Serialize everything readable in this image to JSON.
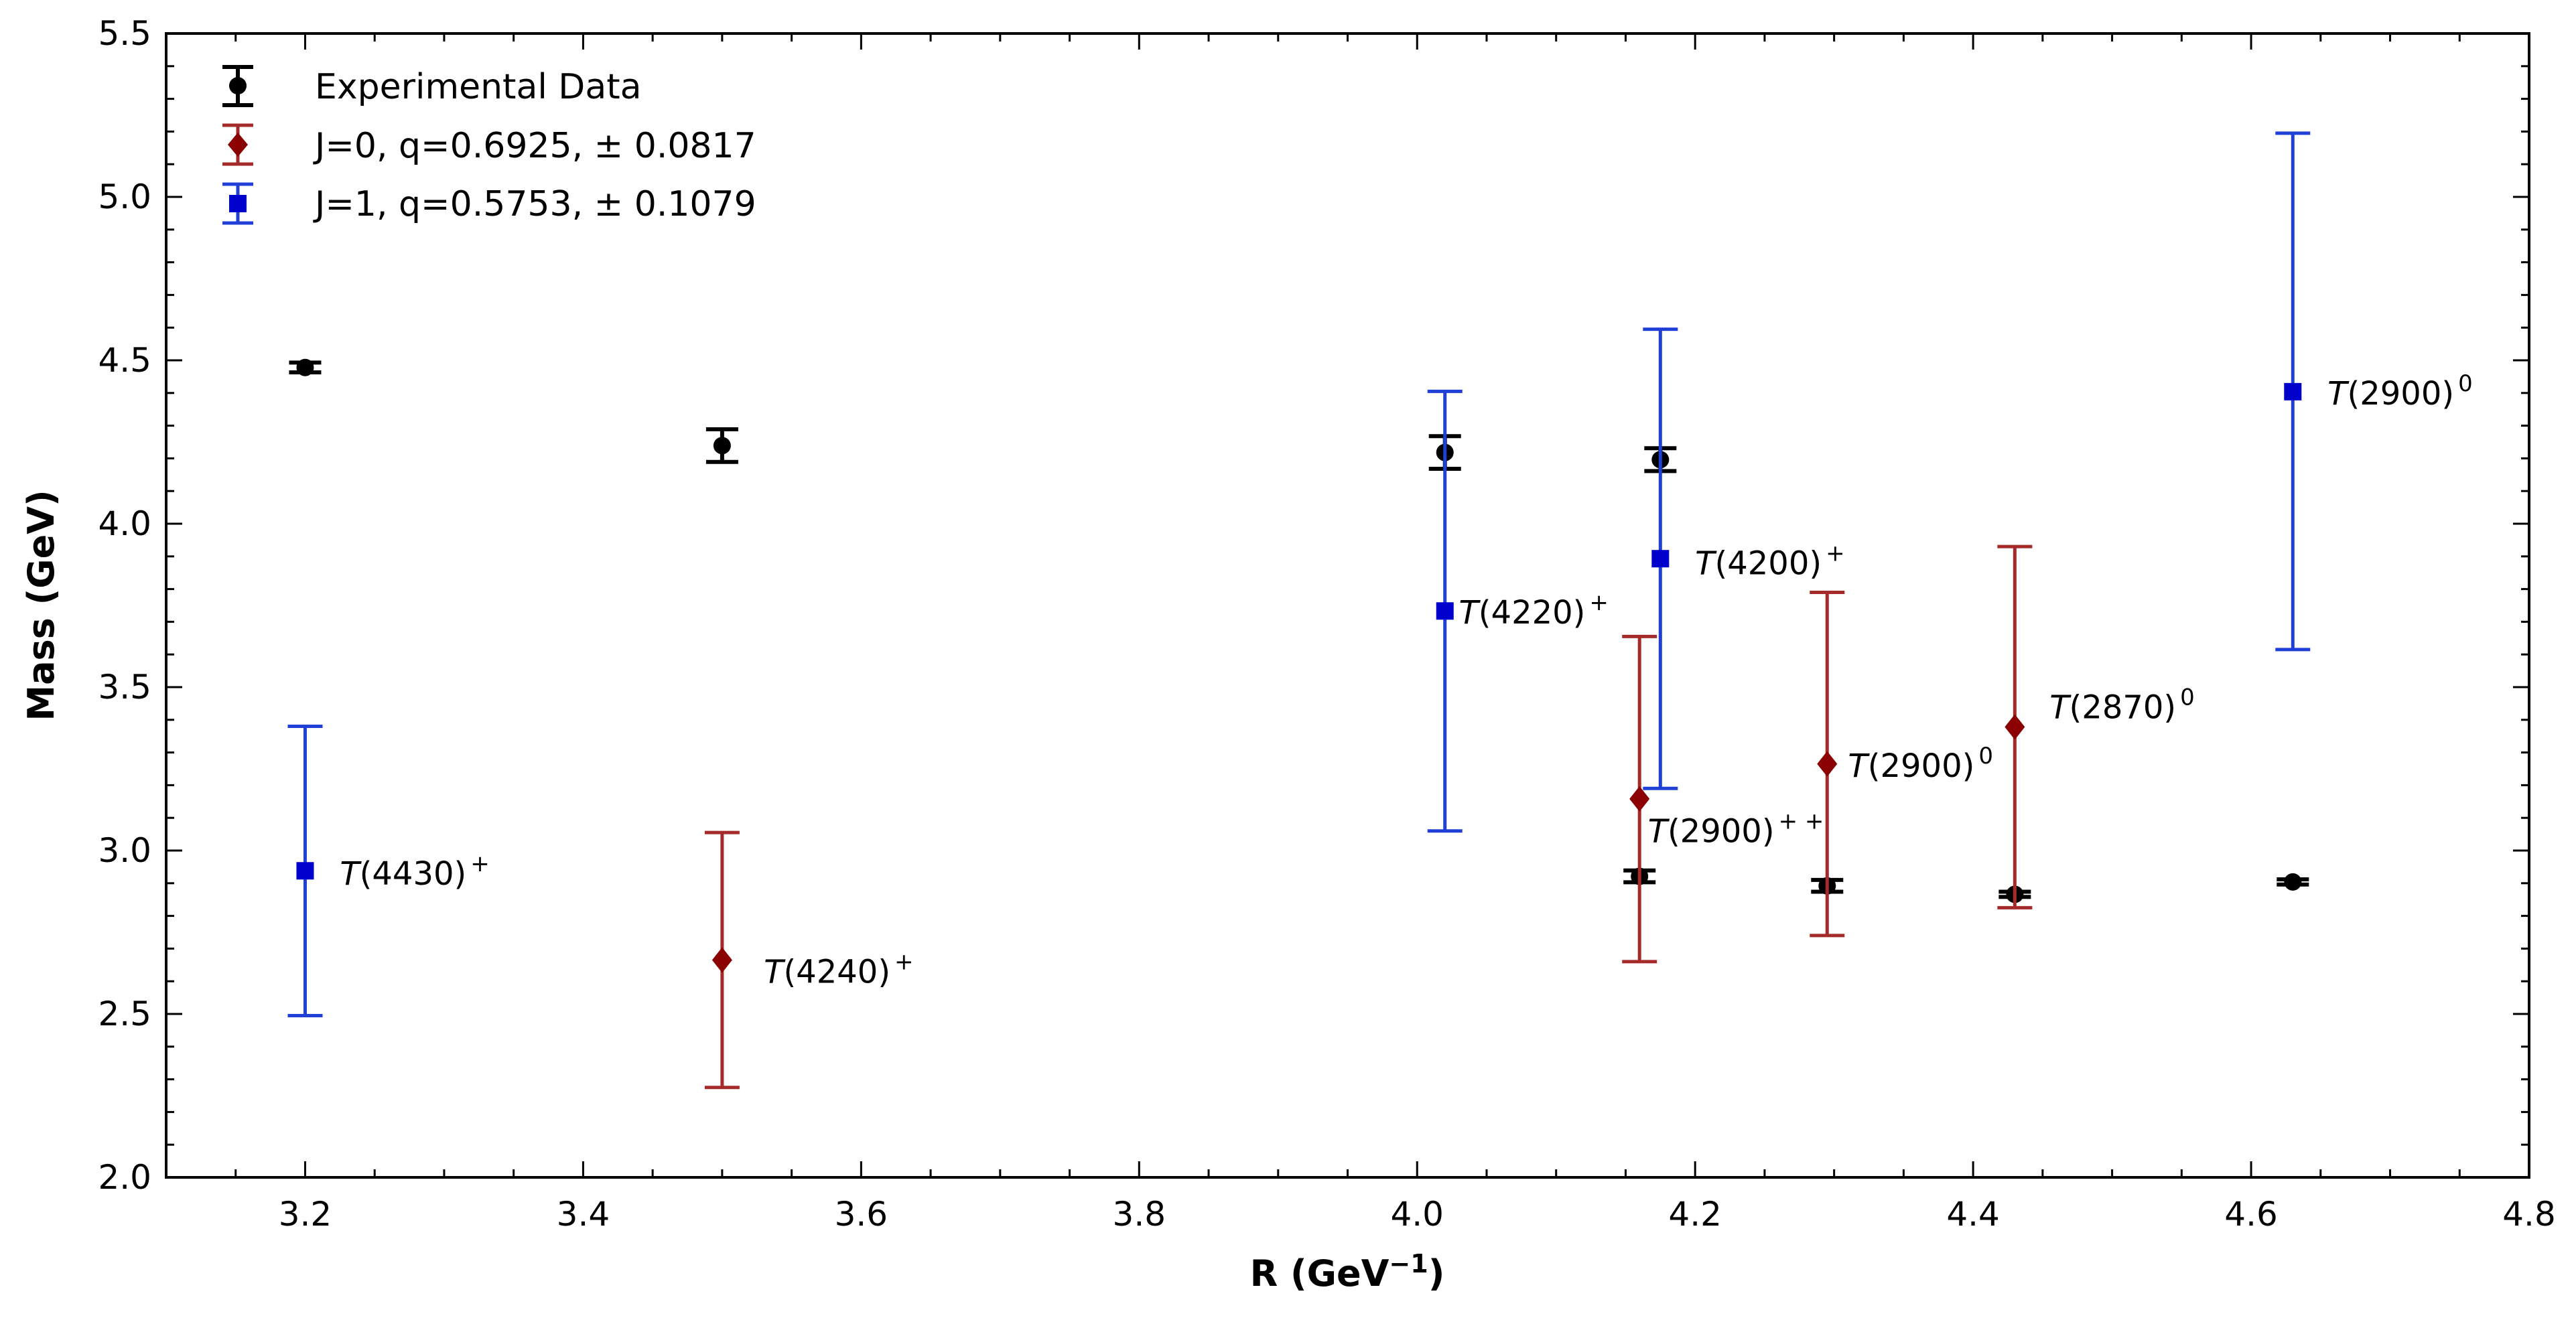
{
  "chart_data": {
    "type": "scatter",
    "xlabel": "R (GeV",
    "xlabel_sup": "−1",
    "xlabel_close": ")",
    "ylabel": "Mass (GeV)",
    "xlim": [
      3.1,
      4.8
    ],
    "ylim": [
      2.0,
      5.5
    ],
    "x_ticks": [
      "3.2",
      "3.4",
      "3.6",
      "3.8",
      "4.0",
      "4.2",
      "4.4",
      "4.6",
      "4.8"
    ],
    "y_ticks": [
      "2.0",
      "2.5",
      "3.0",
      "3.5",
      "4.0",
      "4.5",
      "5.0",
      "5.5"
    ],
    "legend_position": "top-left",
    "series": [
      {
        "name": "Experimental Data",
        "marker": "circle",
        "color": "#000000",
        "points": [
          {
            "x": 3.2,
            "y": 4.478,
            "err": 0.015
          },
          {
            "x": 3.5,
            "y": 4.239,
            "err": 0.05
          },
          {
            "x": 4.02,
            "y": 4.218,
            "err": 0.05
          },
          {
            "x": 4.175,
            "y": 4.196,
            "err": 0.035
          },
          {
            "x": 4.16,
            "y": 2.921,
            "err": 0.018
          },
          {
            "x": 4.295,
            "y": 2.892,
            "err": 0.018
          },
          {
            "x": 4.43,
            "y": 2.866,
            "err": 0.008
          },
          {
            "x": 4.63,
            "y": 2.904,
            "err": 0.008
          }
        ]
      },
      {
        "name": "J=0, q=0.6925, ± 0.0817",
        "marker": "diamond",
        "color": "#8b0000",
        "errcolor": "#a52a2a",
        "points": [
          {
            "x": 3.5,
            "y": 2.665,
            "lo": 2.275,
            "hi": 3.055
          },
          {
            "x": 4.16,
            "y": 3.158,
            "lo": 2.66,
            "hi": 3.655
          },
          {
            "x": 4.295,
            "y": 3.265,
            "lo": 2.74,
            "hi": 3.79
          },
          {
            "x": 4.43,
            "y": 3.378,
            "lo": 2.825,
            "hi": 3.93
          }
        ]
      },
      {
        "name": "J=1, q=0.5753, ± 0.1079",
        "marker": "square",
        "color": "#0000cd",
        "errcolor": "#1f3fd6",
        "points": [
          {
            "x": 3.2,
            "y": 2.938,
            "lo": 2.495,
            "hi": 3.38
          },
          {
            "x": 4.02,
            "y": 3.733,
            "lo": 3.06,
            "hi": 4.405
          },
          {
            "x": 4.175,
            "y": 3.893,
            "lo": 3.19,
            "hi": 4.595
          },
          {
            "x": 4.63,
            "y": 4.404,
            "lo": 3.615,
            "hi": 5.195
          }
        ]
      }
    ],
    "annotations": [
      {
        "name": "T",
        "mass": "(4430)",
        "sup": "+",
        "x": 3.225,
        "y": 2.93
      },
      {
        "name": "T",
        "mass": "(4240)",
        "sup": "+",
        "x": 3.53,
        "y": 2.63
      },
      {
        "name": "T",
        "mass": "(4220)",
        "sup": "+",
        "x": 4.03,
        "y": 3.73
      },
      {
        "name": "T",
        "mass": "(4200)",
        "sup": "+",
        "x": 4.2,
        "y": 3.88
      },
      {
        "name": "T",
        "mass": "(2900)",
        "sup": "+ +",
        "x": 4.166,
        "y": 3.06
      },
      {
        "name": "T",
        "mass": "(2900)",
        "sup": "0",
        "x": 4.31,
        "y": 3.26
      },
      {
        "name": "T",
        "mass": "(2870)",
        "sup": "0",
        "x": 4.455,
        "y": 3.44
      },
      {
        "name": "T",
        "mass": "(2900)",
        "sup": "0",
        "x": 4.655,
        "y": 4.4
      }
    ]
  }
}
